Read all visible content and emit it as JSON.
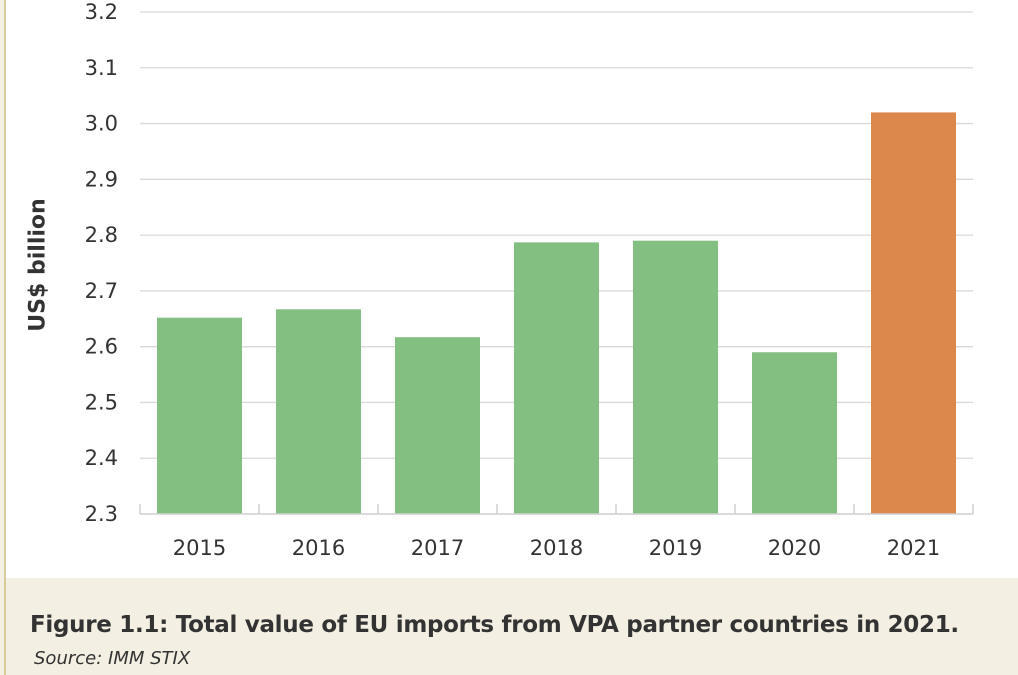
{
  "chart_data": {
    "type": "bar",
    "title": "Figure 1.1: Total value of EU imports from VPA partner countries in 2021.",
    "source": "Source: IMM STIX",
    "xlabel": "",
    "ylabel": "US$ billion",
    "ylim": [
      2.3,
      3.2
    ],
    "yticks": [
      "2.3",
      "2.4",
      "2.5",
      "2.6",
      "2.7",
      "2.8",
      "2.9",
      "3.0",
      "3.1",
      "3.2"
    ],
    "grid": true,
    "categories": [
      "2015",
      "2016",
      "2017",
      "2018",
      "2019",
      "2020",
      "2021"
    ],
    "values": [
      2.652,
      2.667,
      2.617,
      2.787,
      2.79,
      2.59,
      3.02
    ],
    "colors": [
      "#84bf82",
      "#84bf82",
      "#84bf82",
      "#84bf82",
      "#84bf82",
      "#84bf82",
      "#dc884d"
    ]
  }
}
